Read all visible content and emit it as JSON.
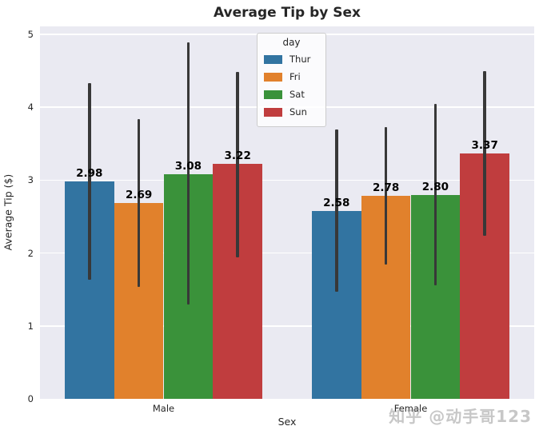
{
  "watermark": "知乎 @动手哥123",
  "colors": {
    "plot_background": "#eaeaf2",
    "gridline": "#ffffff",
    "error_bar": "#383838",
    "text": "#262626"
  },
  "chart_data": {
    "type": "bar",
    "title": "Average Tip by Sex",
    "xlabel": "Sex",
    "ylabel": "Average Tip ($)",
    "categories": [
      "Male",
      "Female"
    ],
    "series": [
      {
        "name": "Thur",
        "color": "#3274a1",
        "values": [
          2.98,
          2.58
        ],
        "err_low": [
          1.63,
          1.47
        ],
        "err_high": [
          4.33,
          3.69
        ]
      },
      {
        "name": "Fri",
        "color": "#e1812c",
        "values": [
          2.69,
          2.78
        ],
        "err_low": [
          1.54,
          1.84
        ],
        "err_high": [
          3.84,
          3.73
        ]
      },
      {
        "name": "Sat",
        "color": "#3a923a",
        "values": [
          3.08,
          2.8
        ],
        "err_low": [
          1.29,
          1.56
        ],
        "err_high": [
          4.89,
          4.05
        ]
      },
      {
        "name": "Sun",
        "color": "#c03d3e",
        "values": [
          3.22,
          3.37
        ],
        "err_low": [
          1.94,
          2.24
        ],
        "err_high": [
          4.49,
          4.5
        ]
      }
    ],
    "bar_labels": {
      "Male": [
        "2.98",
        "2.69",
        "3.08",
        "3.22"
      ],
      "Female": [
        "2.58",
        "2.78",
        "2.80",
        "3.37"
      ]
    },
    "ylim": [
      0,
      5.11
    ],
    "y_ticks": [
      0,
      1,
      2,
      3,
      4,
      5
    ],
    "legend_title": "day",
    "legend_position": "upper center",
    "grid": "horizontal"
  }
}
